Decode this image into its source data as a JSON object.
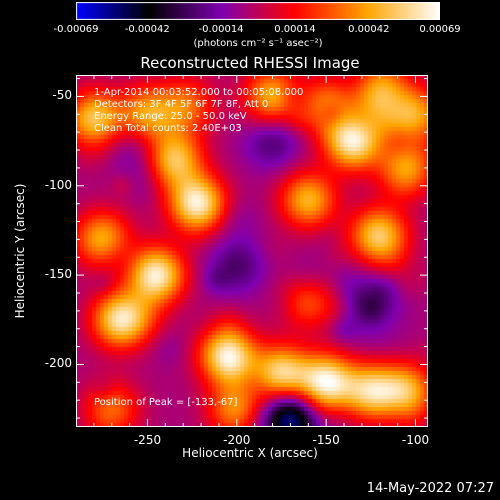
{
  "chart_data": {
    "type": "heatmap",
    "title": "Reconstructed RHESSI Image",
    "xlabel": "Heliocentric X (arcsec)",
    "ylabel": "Heliocentric Y (arcsec)",
    "xlim": [
      -290,
      -93
    ],
    "ylim": [
      -235,
      -38
    ],
    "xticks": [
      "-250",
      "-200",
      "-150",
      "-100"
    ],
    "xtick_values": [
      -250,
      -200,
      -150,
      -100
    ],
    "yticks": [
      "-50",
      "-100",
      "-150",
      "-200"
    ],
    "ytick_values": [
      -50,
      -100,
      -150,
      -200
    ],
    "colorbar": {
      "range": [
        -0.00069,
        0.00069
      ],
      "ticks": [
        "-0.00069",
        "-0.00042",
        "-0.00014",
        "0.00014",
        "0.00042",
        "0.00069"
      ],
      "tick_values": [
        -0.00069,
        -0.00042,
        -0.00014,
        0.00014,
        0.00042,
        0.00069
      ],
      "unit_label": "(photons cm⁻² s⁻¹ asec⁻²)",
      "colors": [
        "#0000ff",
        "#000000",
        "#7f00b0",
        "#ff0000",
        "#ffa500",
        "#ffffff"
      ]
    },
    "annotations": [
      "1-Apr-2014 00:03:52.000 to 00:05:08.000",
      "Detectors: 3F 4F 5F 6F 7F 8F, Att 0",
      "Energy Range: 25.0 - 50.0 keV",
      "Clean    Total counts: 2.40E+03"
    ],
    "peak_label": "Position of Peak = [-133,-67]",
    "grid": false,
    "bright_sources": [
      {
        "x": -280,
        "y": -62,
        "value": 0.00055
      },
      {
        "x": -250,
        "y": -60,
        "value": 0.00045
      },
      {
        "x": -228,
        "y": -55,
        "value": 0.00035
      },
      {
        "x": -180,
        "y": -50,
        "value": 0.0005
      },
      {
        "x": -150,
        "y": -55,
        "value": 0.0004
      },
      {
        "x": -120,
        "y": -45,
        "value": 0.00045
      },
      {
        "x": -100,
        "y": -60,
        "value": 0.00045
      },
      {
        "x": -135,
        "y": -75,
        "value": 0.00069
      },
      {
        "x": -105,
        "y": -90,
        "value": 0.00045
      },
      {
        "x": -235,
        "y": -85,
        "value": 0.00055
      },
      {
        "x": -222,
        "y": -110,
        "value": 0.00069
      },
      {
        "x": -160,
        "y": -108,
        "value": 0.0005
      },
      {
        "x": -120,
        "y": -128,
        "value": 0.0006
      },
      {
        "x": -275,
        "y": -130,
        "value": 0.0005
      },
      {
        "x": -245,
        "y": -150,
        "value": 0.00069
      },
      {
        "x": -265,
        "y": -175,
        "value": 0.00065
      },
      {
        "x": -205,
        "y": -195,
        "value": 0.00069
      },
      {
        "x": -175,
        "y": -205,
        "value": 0.0006
      },
      {
        "x": -150,
        "y": -210,
        "value": 0.00069
      },
      {
        "x": -125,
        "y": -215,
        "value": 0.00055
      },
      {
        "x": -105,
        "y": -215,
        "value": 0.0005
      },
      {
        "x": -200,
        "y": -225,
        "value": 0.00045
      },
      {
        "x": -270,
        "y": -225,
        "value": 0.00035
      },
      {
        "x": -160,
        "y": -165,
        "value": 0.0003
      }
    ],
    "dark_sources": [
      {
        "x": -180,
        "y": -75,
        "value": -0.0002
      },
      {
        "x": -200,
        "y": -145,
        "value": -0.0002
      },
      {
        "x": -170,
        "y": -230,
        "value": -0.00055
      },
      {
        "x": -255,
        "y": -80,
        "value": -0.00015
      },
      {
        "x": -125,
        "y": -165,
        "value": -0.0002
      }
    ]
  },
  "timestamp": "14-May-2022 07:27"
}
